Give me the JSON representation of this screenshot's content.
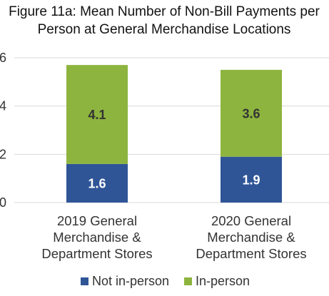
{
  "chart_data": {
    "type": "bar",
    "stacked": true,
    "title_lines": [
      "Figure 11a: Mean Number of Non-Bill Payments per",
      "Person at General Merchandise Locations"
    ],
    "categories": [
      [
        "2019 General",
        "Merchandise &",
        "Department Stores"
      ],
      [
        "2020 General",
        "Merchandise &",
        "Department Stores"
      ]
    ],
    "series": [
      {
        "name": "Not in-person",
        "color": "#2F5597",
        "label_color": "#ffffff",
        "values": [
          1.6,
          1.9
        ],
        "labels": [
          "1.6",
          "1.9"
        ]
      },
      {
        "name": "In-person",
        "color": "#8DB43E",
        "label_color": "#333333",
        "values": [
          4.1,
          3.6
        ],
        "labels": [
          "4.1",
          "3.6"
        ]
      }
    ],
    "y_ticks": [
      "0",
      "2",
      "4",
      "6"
    ],
    "ylim": [
      0,
      6
    ],
    "grid": true,
    "legend_position": "bottom"
  }
}
